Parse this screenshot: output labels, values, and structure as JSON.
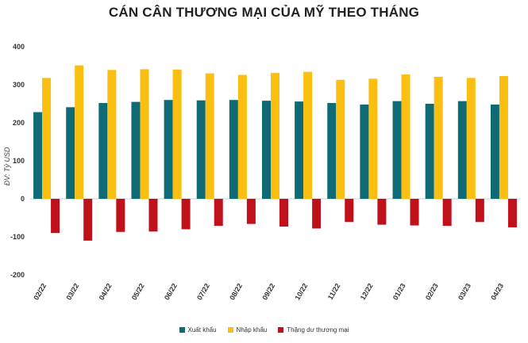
{
  "chart_data": {
    "type": "bar",
    "title": "CÁN CÂN THƯƠNG MẠI CỦA MỸ THEO THÁNG",
    "ylabel": "ĐV: Tỷ USD",
    "xlabel": "",
    "ylim": [
      -200,
      400
    ],
    "yticks": [
      -200,
      -100,
      0,
      100,
      200,
      300,
      400
    ],
    "grid": false,
    "legend": "bottom",
    "categories": [
      "02/22",
      "03/22",
      "04/22",
      "05/22",
      "06/22",
      "07/22",
      "08/22",
      "09/22",
      "10/22",
      "11/22",
      "12/22",
      "01/23",
      "02/23",
      "03/23",
      "04/23"
    ],
    "series": [
      {
        "name": "Xuất khẩu",
        "color": "#0e6b75",
        "values": [
          228,
          241,
          252,
          255,
          260,
          259,
          260,
          258,
          256,
          252,
          248,
          257,
          250,
          257,
          248
        ]
      },
      {
        "name": "Nhập khẩu",
        "color": "#fbbf12",
        "values": [
          318,
          351,
          339,
          341,
          340,
          330,
          326,
          331,
          334,
          313,
          316,
          327,
          321,
          318,
          323
        ]
      },
      {
        "name": "Thặng dư thương mại",
        "color": "#c0101a",
        "values": [
          -90,
          -110,
          -87,
          -86,
          -80,
          -71,
          -66,
          -73,
          -78,
          -61,
          -68,
          -70,
          -71,
          -61,
          -75
        ]
      }
    ]
  }
}
